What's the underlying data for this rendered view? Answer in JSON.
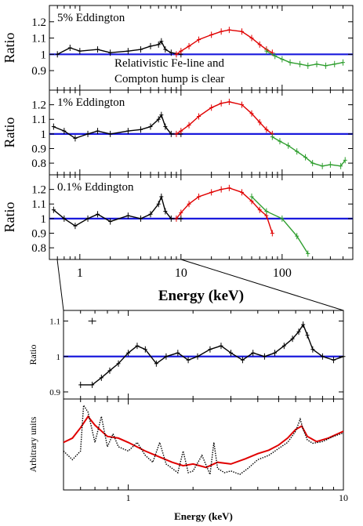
{
  "chart_data": [
    {
      "panel": "top-1",
      "type": "line",
      "title": "5% Eddington",
      "annotation": [
        "Relativistic Fe-line and",
        "Compton hump is clear"
      ],
      "xlabel": "",
      "ylabel": "Ratio",
      "xscale": "log",
      "xlim": [
        0.5,
        500
      ],
      "ylim": [
        0.78,
        1.3
      ],
      "yticks": [
        0.9,
        1,
        1.1,
        1.2
      ],
      "reference_y": 1,
      "series": [
        {
          "color": "#000000",
          "x": [
            0.6,
            0.8,
            1.0,
            1.5,
            2,
            3,
            4,
            5,
            6.0,
            6.4,
            7.0,
            8,
            10
          ],
          "y": [
            1.0,
            1.04,
            1.02,
            1.03,
            1.01,
            1.02,
            1.03,
            1.05,
            1.06,
            1.08,
            1.03,
            1.01,
            1.0
          ]
        },
        {
          "color": "#e00000",
          "x": [
            9,
            10,
            12,
            15,
            20,
            25,
            30,
            40,
            50,
            60,
            70,
            80
          ],
          "y": [
            1.0,
            1.02,
            1.05,
            1.09,
            1.12,
            1.14,
            1.15,
            1.14,
            1.1,
            1.06,
            1.03,
            1.01
          ]
        },
        {
          "color": "#2e9e2e",
          "x": [
            70,
            85,
            100,
            120,
            150,
            180,
            220,
            270,
            330,
            400
          ],
          "y": [
            1.02,
            0.99,
            0.97,
            0.95,
            0.94,
            0.93,
            0.94,
            0.93,
            0.94,
            0.95
          ]
        }
      ]
    },
    {
      "panel": "top-2",
      "type": "line",
      "title": "1% Eddington",
      "xlabel": "",
      "ylabel": "Ratio",
      "xscale": "log",
      "xlim": [
        0.5,
        500
      ],
      "ylim": [
        0.72,
        1.3
      ],
      "yticks": [
        0.8,
        0.9,
        1,
        1.1,
        1.2
      ],
      "reference_y": 1,
      "series": [
        {
          "color": "#000000",
          "x": [
            0.55,
            0.7,
            0.9,
            1.2,
            1.5,
            2,
            3,
            4,
            5,
            6.0,
            6.4,
            7.0,
            8,
            10
          ],
          "y": [
            1.05,
            1.02,
            0.97,
            1.0,
            1.02,
            1.0,
            1.02,
            1.03,
            1.05,
            1.1,
            1.13,
            1.05,
            1.0,
            1.0
          ]
        },
        {
          "color": "#e00000",
          "x": [
            9,
            10,
            12,
            15,
            20,
            25,
            30,
            40,
            50,
            60,
            70,
            80
          ],
          "y": [
            1.0,
            1.02,
            1.06,
            1.12,
            1.18,
            1.21,
            1.22,
            1.2,
            1.14,
            1.08,
            1.03,
            1.0
          ]
        },
        {
          "color": "#2e9e2e",
          "x": [
            80,
            95,
            115,
            140,
            170,
            200,
            250,
            300,
            380,
            420
          ],
          "y": [
            0.98,
            0.95,
            0.92,
            0.88,
            0.84,
            0.8,
            0.78,
            0.79,
            0.78,
            0.82
          ]
        }
      ]
    },
    {
      "panel": "top-3",
      "type": "line",
      "title": "0.1% Eddington",
      "xlabel": "Energy (keV)",
      "ylabel": "Ratio",
      "xscale": "log",
      "xlim": [
        0.5,
        500
      ],
      "ylim": [
        0.72,
        1.3
      ],
      "yticks": [
        0.8,
        0.9,
        1,
        1.1,
        1.2
      ],
      "xticks": [
        1,
        10,
        100
      ],
      "reference_y": 1,
      "series": [
        {
          "color": "#000000",
          "x": [
            0.55,
            0.7,
            0.9,
            1.2,
            1.5,
            2,
            3,
            4,
            5,
            6.0,
            6.4,
            7.0,
            8,
            10
          ],
          "y": [
            1.06,
            1.0,
            0.95,
            1.0,
            1.03,
            0.98,
            1.02,
            1.0,
            1.03,
            1.1,
            1.15,
            1.05,
            1.0,
            1.0
          ]
        },
        {
          "color": "#e00000",
          "x": [
            9,
            10,
            12,
            15,
            20,
            25,
            30,
            40,
            50,
            60,
            70,
            80
          ],
          "y": [
            1.0,
            1.04,
            1.1,
            1.15,
            1.18,
            1.2,
            1.21,
            1.18,
            1.12,
            1.06,
            1.02,
            0.9
          ]
        },
        {
          "color": "#2e9e2e",
          "x": [
            50,
            70,
            100,
            140,
            180
          ],
          "y": [
            1.15,
            1.05,
            1.0,
            0.88,
            0.76
          ]
        }
      ]
    },
    {
      "panel": "bottom-ratio",
      "type": "line",
      "ylabel": "Ratio",
      "xlabel": "",
      "xscale": "log",
      "xlim": [
        0.5,
        10
      ],
      "ylim": [
        0.88,
        1.13
      ],
      "yticks": [
        0.9,
        1,
        1.1
      ],
      "reference_y": 1,
      "series": [
        {
          "color": "#000000",
          "x": [
            0.6,
            0.68,
            0.75,
            0.82,
            0.9,
            1.0,
            1.1,
            1.2,
            1.35,
            1.5,
            1.7,
            1.9,
            2.1,
            2.4,
            2.7,
            3.0,
            3.4,
            3.8,
            4.3,
            4.8,
            5.3,
            5.8,
            6.2,
            6.5,
            6.8,
            7.2,
            8,
            9,
            10
          ],
          "y": [
            0.92,
            0.92,
            0.94,
            0.96,
            0.98,
            1.01,
            1.03,
            1.02,
            0.98,
            1.0,
            1.01,
            0.99,
            1.0,
            1.02,
            1.03,
            1.01,
            0.99,
            1.01,
            1.0,
            1.01,
            1.03,
            1.05,
            1.07,
            1.09,
            1.06,
            1.02,
            1.0,
            0.99,
            1.0
          ]
        }
      ],
      "outlier_points": [
        {
          "x": 0.68,
          "y": 1.1
        }
      ]
    },
    {
      "panel": "bottom-model",
      "type": "line",
      "ylabel": "Arbitrary units",
      "xlabel": "Energy (keV)",
      "xscale": "log",
      "xlim": [
        0.5,
        10
      ],
      "xticks": [
        1,
        10
      ],
      "series": [
        {
          "color": "#e00000",
          "style": "solid",
          "x": [
            0.5,
            0.55,
            0.6,
            0.65,
            0.7,
            0.8,
            0.9,
            1.0,
            1.2,
            1.4,
            1.6,
            1.8,
            2.0,
            2.3,
            2.6,
            3.0,
            3.5,
            4.0,
            4.5,
            5.0,
            5.5,
            6.0,
            6.4,
            6.8,
            7.5,
            8.5,
            10
          ],
          "y": [
            0.55,
            0.6,
            0.72,
            0.85,
            0.75,
            0.62,
            0.6,
            0.55,
            0.45,
            0.38,
            0.32,
            0.28,
            0.3,
            0.26,
            0.32,
            0.3,
            0.36,
            0.42,
            0.46,
            0.52,
            0.6,
            0.7,
            0.74,
            0.62,
            0.56,
            0.6,
            0.68
          ]
        },
        {
          "color": "#000000",
          "style": "dotted",
          "x": [
            0.5,
            0.55,
            0.6,
            0.62,
            0.65,
            0.7,
            0.75,
            0.8,
            0.85,
            0.9,
            1.0,
            1.1,
            1.2,
            1.3,
            1.4,
            1.5,
            1.6,
            1.7,
            1.8,
            1.9,
            2.0,
            2.2,
            2.4,
            2.5,
            2.6,
            2.8,
            3.0,
            3.3,
            3.6,
            4.0,
            4.5,
            5.0,
            5.5,
            6.0,
            6.3,
            6.5,
            6.8,
            7.2,
            8,
            9,
            10
          ],
          "y": [
            0.45,
            0.35,
            0.45,
            0.98,
            0.9,
            0.55,
            0.85,
            0.5,
            0.65,
            0.5,
            0.45,
            0.55,
            0.4,
            0.32,
            0.55,
            0.3,
            0.25,
            0.2,
            0.45,
            0.2,
            0.22,
            0.4,
            0.18,
            0.55,
            0.25,
            0.2,
            0.22,
            0.18,
            0.25,
            0.35,
            0.4,
            0.48,
            0.55,
            0.68,
            0.82,
            0.7,
            0.58,
            0.54,
            0.56,
            0.62,
            0.66
          ]
        }
      ]
    }
  ]
}
